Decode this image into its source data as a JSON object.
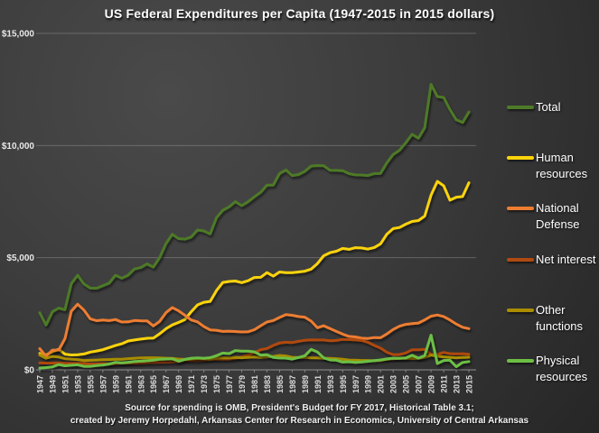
{
  "title": "US Federal Expenditures per Capita (1947-2015 in 2015 dollars)",
  "footer": {
    "line1": "Source for spending is OMB, President's Budget for FY 2017, Historical Table 3.1;",
    "line2": "created by Jeremy Horpedahl, Arkansas Center for Research in Economics, University of Central Arkansas"
  },
  "colors": {
    "background": "#3c3c3c",
    "gridline": "#9a9a9a",
    "axis_text": "#e8e8e8",
    "title_text": "#ffffff"
  },
  "chart_data": {
    "type": "line",
    "title": "US Federal Expenditures per Capita (1947-2015 in 2015 dollars)",
    "xlabel": "",
    "ylabel": "",
    "ylim": [
      0,
      15000
    ],
    "grid": true,
    "legend_position": "right",
    "x": [
      1947,
      1948,
      1949,
      1950,
      1951,
      1952,
      1953,
      1954,
      1955,
      1956,
      1957,
      1958,
      1959,
      1960,
      1961,
      1962,
      1963,
      1964,
      1965,
      1966,
      1967,
      1968,
      1969,
      1970,
      1971,
      1972,
      1973,
      1974,
      1975,
      1976,
      1977,
      1978,
      1979,
      1980,
      1981,
      1982,
      1983,
      1984,
      1985,
      1986,
      1987,
      1988,
      1989,
      1990,
      1991,
      1992,
      1993,
      1994,
      1995,
      1996,
      1997,
      1998,
      1999,
      2000,
      2001,
      2002,
      2003,
      2004,
      2005,
      2006,
      2007,
      2008,
      2009,
      2010,
      2011,
      2012,
      2013,
      2014,
      2015
    ],
    "x_tick_labels": [
      "1947",
      "1949",
      "1951",
      "1953",
      "1955",
      "1957",
      "1959",
      "1961",
      "1963",
      "1965",
      "1967",
      "1969",
      "1971",
      "1973",
      "1975",
      "1977",
      "1979",
      "1981",
      "1983",
      "1985",
      "1987",
      "1989",
      "1991",
      "1993",
      "1995",
      "1997",
      "1999",
      "2001",
      "2003",
      "2005",
      "2007",
      "2009",
      "2011",
      "2013",
      "2015"
    ],
    "y_ticks": [
      {
        "value": 0,
        "label": "$0"
      },
      {
        "value": 5000,
        "label": "$5,000"
      },
      {
        "value": 10000,
        "label": "$10,000"
      },
      {
        "value": 15000,
        "label": "$15,000"
      }
    ],
    "series": [
      {
        "name": "Total",
        "legend_lines": [
          "Total"
        ],
        "color": "#4e7a28",
        "values": [
          2547,
          1998,
          2590,
          2754,
          2679,
          3840,
          4218,
          3832,
          3645,
          3641,
          3754,
          3863,
          4217,
          4087,
          4218,
          4495,
          4560,
          4724,
          4575,
          5001,
          5628,
          6043,
          5851,
          5827,
          5920,
          6232,
          6192,
          6058,
          6784,
          7112,
          7266,
          7501,
          7321,
          7490,
          7713,
          7916,
          8230,
          8238,
          8752,
          8910,
          8661,
          8708,
          8853,
          9086,
          9107,
          9102,
          8894,
          8890,
          8880,
          8748,
          8692,
          8686,
          8662,
          8749,
          8758,
          9229,
          9604,
          9788,
          10122,
          10500,
          10327,
          10789,
          12727,
          12183,
          12141,
          11606,
          11148,
          11026,
          11494
        ]
      },
      {
        "name": "Human resources",
        "legend_lines": [
          "Human",
          "resources"
        ],
        "color": "#fbd30b",
        "values": [
          738,
          664,
          808,
          918,
          700,
          663,
          670,
          708,
          794,
          840,
          902,
          994,
          1090,
          1161,
          1286,
          1330,
          1372,
          1408,
          1417,
          1610,
          1833,
          2002,
          2116,
          2243,
          2589,
          2896,
          3011,
          3054,
          3536,
          3895,
          3940,
          3962,
          3887,
          3973,
          4117,
          4127,
          4337,
          4177,
          4363,
          4333,
          4332,
          4363,
          4401,
          4491,
          4743,
          5089,
          5222,
          5287,
          5412,
          5371,
          5444,
          5431,
          5384,
          5455,
          5616,
          6047,
          6297,
          6344,
          6495,
          6615,
          6656,
          6857,
          7788,
          8405,
          8205,
          7563,
          7696,
          7724,
          8342
        ]
      },
      {
        "name": "National Defense",
        "legend_lines": [
          "National",
          "Defense"
        ],
        "color": "#ed7d31",
        "values": [
          945,
          610,
          881,
          886,
          1390,
          2615,
          2927,
          2665,
          2275,
          2191,
          2225,
          2194,
          2243,
          2132,
          2141,
          2201,
          2187,
          2185,
          1958,
          2160,
          2551,
          2779,
          2629,
          2434,
          2222,
          2139,
          1933,
          1783,
          1766,
          1714,
          1726,
          1709,
          1690,
          1699,
          1791,
          1967,
          2137,
          2199,
          2337,
          2460,
          2432,
          2375,
          2350,
          2170,
          1880,
          1966,
          1837,
          1712,
          1594,
          1490,
          1469,
          1410,
          1399,
          1440,
          1433,
          1600,
          1800,
          1946,
          2028,
          2063,
          2087,
          2229,
          2391,
          2444,
          2378,
          2224,
          2044,
          1898,
          1838
        ]
      },
      {
        "name": "Net interest",
        "legend_lines": [
          "Net interest"
        ],
        "color": "#b04a10",
        "values": [
          310,
          300,
          300,
          310,
          290,
          290,
          290,
          280,
          260,
          260,
          270,
          260,
          280,
          306,
          300,
          300,
          310,
          320,
          333,
          340,
          350,
          360,
          380,
          429,
          420,
          420,
          440,
          460,
          474,
          470,
          480,
          520,
          570,
          666,
          760,
          900,
          950,
          1090,
          1197,
          1230,
          1220,
          1270,
          1320,
          1337,
          1330,
          1330,
          1300,
          1310,
          1360,
          1350,
          1340,
          1310,
          1230,
          1090,
          969,
          784,
          681,
          684,
          753,
          896,
          897,
          914,
          676,
          691,
          775,
          723,
          713,
          719,
          696
        ]
      },
      {
        "name": "Other functions",
        "legend_lines": [
          "Other",
          "functions"
        ],
        "color": "#a98c00",
        "values": [
          657,
          520,
          600,
          570,
          500,
          480,
          460,
          420,
          426,
          440,
          450,
          460,
          470,
          474,
          500,
          520,
          530,
          540,
          538,
          530,
          520,
          510,
          480,
          467,
          480,
          510,
          490,
          480,
          519,
          540,
          530,
          560,
          540,
          559,
          570,
          550,
          580,
          600,
          645,
          620,
          560,
          550,
          560,
          538,
          530,
          520,
          510,
          500,
          469,
          440,
          430,
          420,
          420,
          408,
          420,
          470,
          500,
          510,
          516,
          520,
          510,
          560,
          660,
          609,
          580,
          560,
          540,
          550,
          561
        ]
      },
      {
        "name": "Physical resources",
        "legend_lines": [
          "Physical",
          "resources"
        ],
        "color": "#6cbf44",
        "values": [
          81,
          100,
          133,
          239,
          182,
          204,
          227,
          157,
          155,
          191,
          216,
          258,
          334,
          310,
          337,
          375,
          385,
          407,
          429,
          472,
          482,
          495,
          386,
          465,
          518,
          535,
          519,
          542,
          631,
          748,
          723,
          859,
          834,
          837,
          806,
          661,
          672,
          551,
          525,
          524,
          477,
          549,
          631,
          914,
          794,
          534,
          442,
          431,
          346,
          360,
          329,
          352,
          384,
          415,
          444,
          488,
          522,
          517,
          533,
          653,
          524,
          638,
          1550,
          280,
          420,
          430,
          140,
          330,
          370
        ]
      }
    ]
  }
}
